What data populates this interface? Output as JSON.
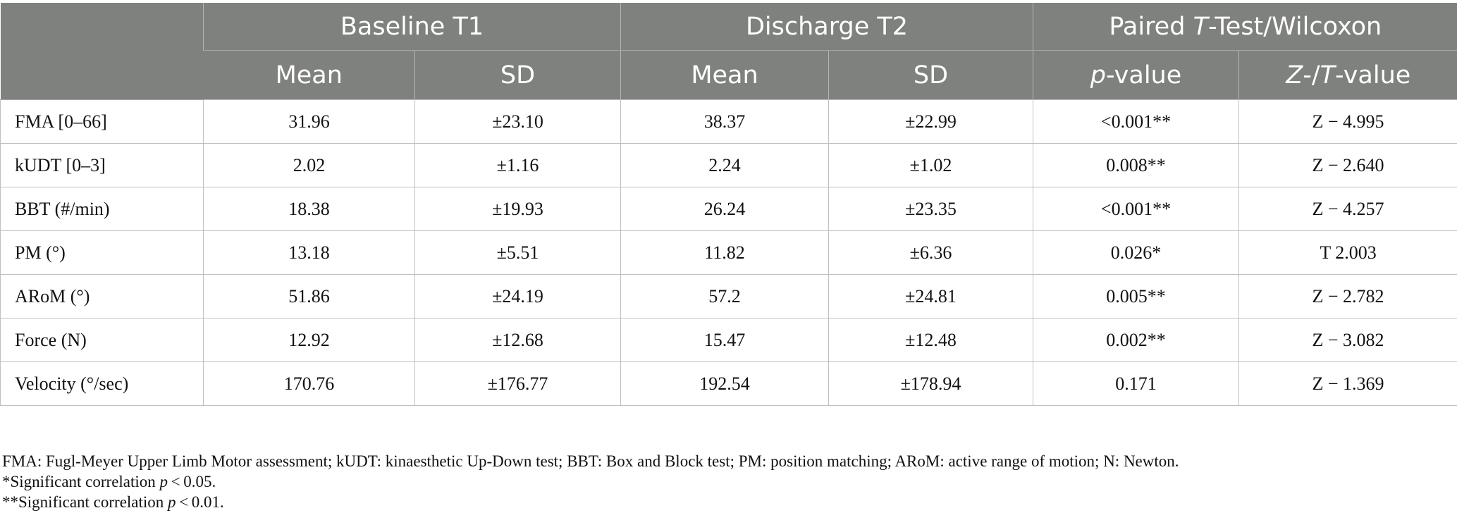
{
  "table": {
    "group_headers": [
      "Baseline T1",
      "Discharge T2"
    ],
    "paired_header": {
      "part1": "Paired ",
      "italic": "T",
      "part2": "-Test/Wilcoxon"
    },
    "sub_headers": {
      "mean": "Mean",
      "sd": "SD",
      "p_value": {
        "italic": "p",
        "rest": "-value"
      },
      "zt_value": {
        "italic1": "Z",
        "mid": "-/",
        "italic2": "T",
        "rest": "-value"
      }
    },
    "rows": [
      {
        "label": "FMA [0–66]",
        "t1_mean": "31.96",
        "t1_sd": "±23.10",
        "t2_mean": "38.37",
        "t2_sd": "±22.99",
        "p": "<0.001**",
        "zt": "Z − 4.995"
      },
      {
        "label": "kUDT [0–3]",
        "t1_mean": "2.02",
        "t1_sd": "±1.16",
        "t2_mean": "2.24",
        "t2_sd": "±1.02",
        "p": "0.008**",
        "zt": "Z − 2.640"
      },
      {
        "label": "BBT (#/min)",
        "t1_mean": "18.38",
        "t1_sd": "±19.93",
        "t2_mean": "26.24",
        "t2_sd": "±23.35",
        "p": "<0.001**",
        "zt": "Z − 4.257"
      },
      {
        "label": "PM (°)",
        "t1_mean": "13.18",
        "t1_sd": "±5.51",
        "t2_mean": "11.82",
        "t2_sd": "±6.36",
        "p": "0.026*",
        "zt": "T 2.003"
      },
      {
        "label": "ARoM (°)",
        "t1_mean": "51.86",
        "t1_sd": "±24.19",
        "t2_mean": "57.2",
        "t2_sd": "±24.81",
        "p": "0.005**",
        "zt": "Z − 2.782"
      },
      {
        "label": "Force (N)",
        "t1_mean": "12.92",
        "t1_sd": "±12.68",
        "t2_mean": "15.47",
        "t2_sd": "±12.48",
        "p": "0.002**",
        "zt": "Z − 3.082"
      },
      {
        "label": "Velocity (°/sec)",
        "t1_mean": "170.76",
        "t1_sd": "±176.77",
        "t2_mean": "192.54",
        "t2_sd": "±178.94",
        "p": "0.171",
        "zt": "Z − 1.369"
      }
    ]
  },
  "notes": {
    "abbreviations": "FMA: Fugl-Meyer Upper Limb Motor assessment; kUDT: kinaesthetic Up-Down test; BBT: Box and Block test; PM: position matching; ARoM: active range of motion; N: Newton.",
    "sig1": {
      "prefix": "*Significant correlation ",
      "italic": "p",
      "suffix": " < 0.05."
    },
    "sig2": {
      "prefix": "**Significant correlation ",
      "italic": "p",
      "suffix": " < 0.01."
    }
  },
  "colors": {
    "header_bg": "#7f817e",
    "header_text": "#ffffff",
    "grid": "#bfbfbf"
  }
}
